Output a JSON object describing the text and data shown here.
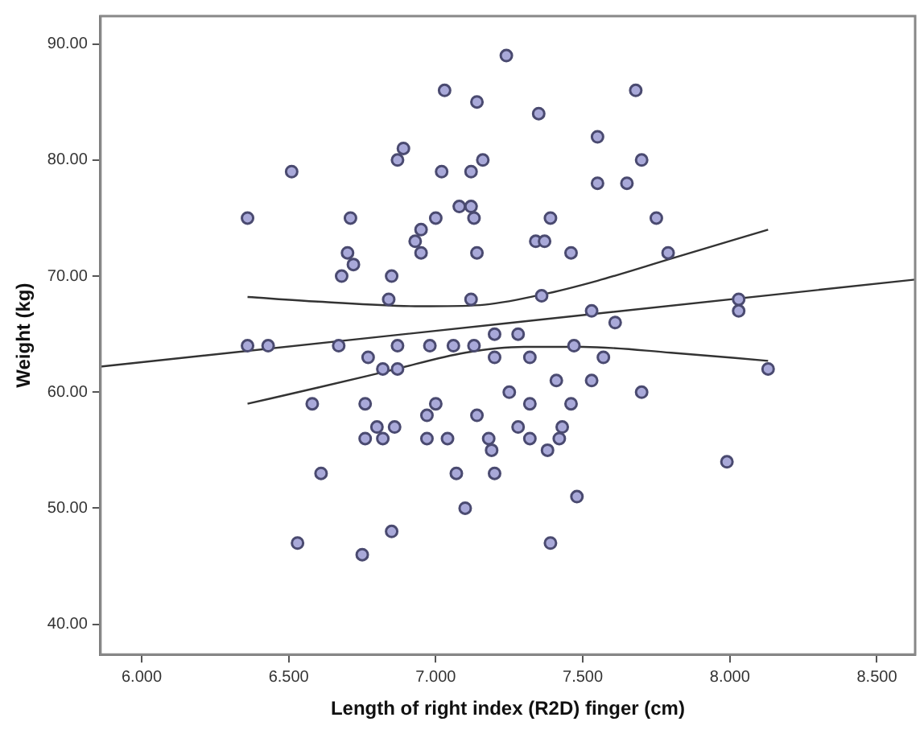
{
  "chart_data": {
    "type": "scatter",
    "xlabel": "Length of right index (R2D) finger (cm)",
    "ylabel": "Weight (kg)",
    "xlim": [
      5.86,
      8.63
    ],
    "ylim": [
      37.4,
      92.4
    ],
    "xticks": [
      {
        "value": 6,
        "label": "6.000"
      },
      {
        "value": 6.5,
        "label": "6.500"
      },
      {
        "value": 7,
        "label": "7.000"
      },
      {
        "value": 7.5,
        "label": "7.500"
      },
      {
        "value": 8,
        "label": "8.000"
      },
      {
        "value": 8.5,
        "label": "8.500"
      }
    ],
    "yticks": [
      {
        "value": 40,
        "label": "40.00"
      },
      {
        "value": 50,
        "label": "50.00"
      },
      {
        "value": 60,
        "label": "60.00"
      },
      {
        "value": 70,
        "label": "70.00"
      },
      {
        "value": 80,
        "label": "80.00"
      },
      {
        "value": 90,
        "label": "90.00"
      }
    ],
    "grid": false,
    "legend": false,
    "series": [
      {
        "color": "#a9a9d9",
        "marker": "circle",
        "x": [
          7.24,
          7.03,
          7.14,
          6.89,
          6.87,
          7.16,
          6.51,
          7.02,
          7.12,
          6.36,
          6.71,
          7.0,
          7.08,
          7.12,
          7.13,
          6.95,
          6.93,
          6.95,
          7.14,
          6.7,
          6.72,
          6.68,
          6.85,
          6.84,
          7.12,
          7.2,
          6.36,
          6.43,
          6.67,
          6.87,
          6.98,
          7.06,
          7.13,
          6.77,
          7.2,
          7.68,
          7.35,
          7.55,
          7.7,
          7.55,
          7.65,
          7.39,
          7.75,
          7.34,
          7.37,
          7.46,
          7.79,
          7.36,
          7.53,
          7.61,
          8.03,
          8.03,
          7.28,
          7.47,
          7.32,
          7.57,
          6.82,
          6.87,
          6.58,
          6.76,
          7.0,
          6.97,
          7.14,
          6.8,
          6.86,
          6.76,
          6.82,
          6.97,
          7.04,
          7.18,
          7.19,
          6.61,
          7.07,
          7.2,
          7.1,
          6.85,
          6.53,
          6.75,
          7.25,
          8.13,
          7.41,
          7.53,
          7.7,
          7.32,
          7.46,
          7.28,
          7.43,
          7.32,
          7.42,
          7.38,
          7.99,
          7.48,
          7.39
        ],
        "values": [
          89,
          86,
          85,
          81,
          80,
          80,
          79,
          79,
          79,
          75,
          75,
          75,
          76,
          76,
          75,
          74,
          73,
          72,
          72,
          72,
          71,
          70,
          70,
          68,
          68,
          65,
          64,
          64,
          64,
          64,
          64,
          64,
          64,
          63,
          63,
          86,
          84,
          82,
          80,
          78,
          78,
          75,
          75,
          73,
          73,
          72,
          72,
          68.3,
          67,
          66,
          68,
          67,
          65,
          64,
          63,
          63,
          62,
          62,
          59,
          59,
          59,
          58,
          58,
          57,
          57,
          56,
          56,
          56,
          56,
          56,
          55,
          53,
          53,
          53,
          50,
          48,
          47,
          46,
          60,
          62,
          61,
          61,
          60,
          59,
          59,
          57,
          57,
          56,
          56,
          55,
          54,
          51,
          47
        ]
      },
      {
        "type": "line",
        "color": "#333333",
        "marker": "none",
        "line_style": "solid",
        "x": [
          5.86,
          8.63
        ],
        "values": [
          62.2,
          69.7
        ]
      },
      {
        "type": "line",
        "color": "#333333",
        "marker": "none",
        "line_style": "solid",
        "x": [
          6.36,
          6.6,
          6.95,
          7.15,
          7.36,
          7.55,
          7.8,
          8.13
        ],
        "values": [
          68.2,
          67.8,
          67.4,
          67.5,
          68.4,
          69.6,
          71.5,
          74.0
        ]
      },
      {
        "type": "line",
        "color": "#333333",
        "marker": "none",
        "line_style": "solid",
        "x": [
          6.36,
          6.6,
          6.85,
          7.1,
          7.3,
          7.5,
          7.8,
          8.13
        ],
        "values": [
          59.0,
          60.4,
          61.9,
          63.4,
          63.9,
          63.9,
          63.4,
          62.7
        ]
      }
    ]
  }
}
